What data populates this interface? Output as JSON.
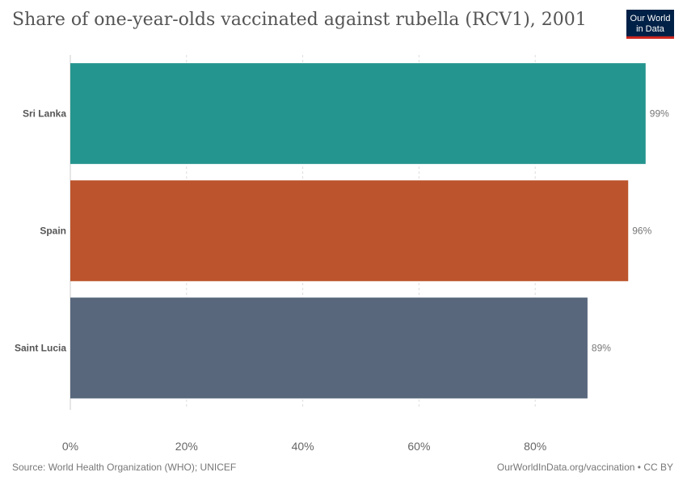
{
  "header": {
    "title": "Share of one-year-olds vaccinated against rubella (RCV1), 2001",
    "logo_line1": "Our World",
    "logo_line2": "in Data"
  },
  "footer": {
    "source": "Source: World Health Organization (WHO); UNICEF",
    "credit": "OurWorldInData.org/vaccination • CC BY"
  },
  "colors": {
    "sri_lanka": "#25958f",
    "spain": "#bc542d",
    "saint_lucia": "#58677c",
    "logo_bg": "#002147",
    "logo_accent": "#ce261e"
  },
  "chart_data": {
    "type": "bar",
    "orientation": "horizontal",
    "categories": [
      "Sri Lanka",
      "Spain",
      "Saint Lucia"
    ],
    "values": [
      99,
      96,
      89
    ],
    "value_labels": [
      "99%",
      "96%",
      "89%"
    ],
    "bar_colors": [
      "#25958f",
      "#bc542d",
      "#58677c"
    ],
    "xlim": [
      0,
      100
    ],
    "x_ticks": [
      0,
      20,
      40,
      60,
      80
    ],
    "x_tick_labels": [
      "0%",
      "20%",
      "40%",
      "60%",
      "80%"
    ],
    "grid": true,
    "legend": "none"
  }
}
